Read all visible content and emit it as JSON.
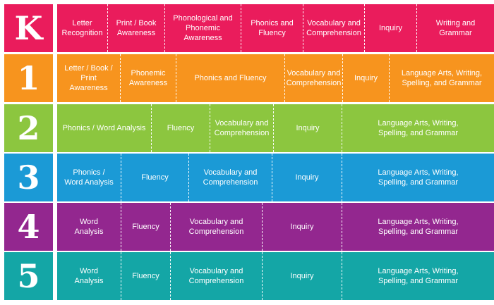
{
  "rows": [
    {
      "grade": "K",
      "color": "#ea1c5c",
      "cells": [
        {
          "label": "Letter\nRecognition"
        },
        {
          "label": "Print / Book\nAwareness"
        },
        {
          "label": "Phonological and\nPhonemic Awareness"
        },
        {
          "label": "Phonics and\nFluency"
        },
        {
          "label": "Vocabulary and\nComprehension"
        },
        {
          "label": "Inquiry"
        },
        {
          "label": "Writing and\nGrammar"
        }
      ]
    },
    {
      "grade": "1",
      "color": "#f7941e",
      "cells": [
        {
          "label": "Letter / Book / Print\nAwareness"
        },
        {
          "label": "Phonemic\nAwareness"
        },
        {
          "label": "Phonics and Fluency"
        },
        {
          "label": "Vocabulary and\nComprehension"
        },
        {
          "label": "Inquiry"
        },
        {
          "label": "Language Arts, Writing,\nSpelling, and Grammar"
        }
      ]
    },
    {
      "grade": "2",
      "color": "#8cc63f",
      "cells": [
        {
          "label": "Phonics / Word Analysis"
        },
        {
          "label": "Fluency"
        },
        {
          "label": "Vocabulary and\nComprehension"
        },
        {
          "label": "Inquiry"
        },
        {
          "label": "Language Arts, Writing,\nSpelling, and Grammar"
        }
      ]
    },
    {
      "grade": "3",
      "color": "#1b9ad6",
      "cells": [
        {
          "label": "Phonics /\nWord Analysis"
        },
        {
          "label": "Fluency"
        },
        {
          "label": "Vocabulary and\nComprehension"
        },
        {
          "label": "Inquiry"
        },
        {
          "label": "Language Arts, Writing,\nSpelling, and Grammar"
        }
      ]
    },
    {
      "grade": "4",
      "color": "#93278f",
      "cells": [
        {
          "label": "Word\nAnalysis"
        },
        {
          "label": "Fluency"
        },
        {
          "label": "Vocabulary and\nComprehension"
        },
        {
          "label": "Inquiry"
        },
        {
          "label": "Language Arts, Writing,\nSpelling, and Grammar"
        }
      ]
    },
    {
      "grade": "5",
      "color": "#14a6a6",
      "cells": [
        {
          "label": "Word\nAnalysis"
        },
        {
          "label": "Fluency"
        },
        {
          "label": "Vocabulary and\nComprehension"
        },
        {
          "label": "Inquiry"
        },
        {
          "label": "Language Arts, Writing,\nSpelling, and Grammar"
        }
      ]
    }
  ]
}
